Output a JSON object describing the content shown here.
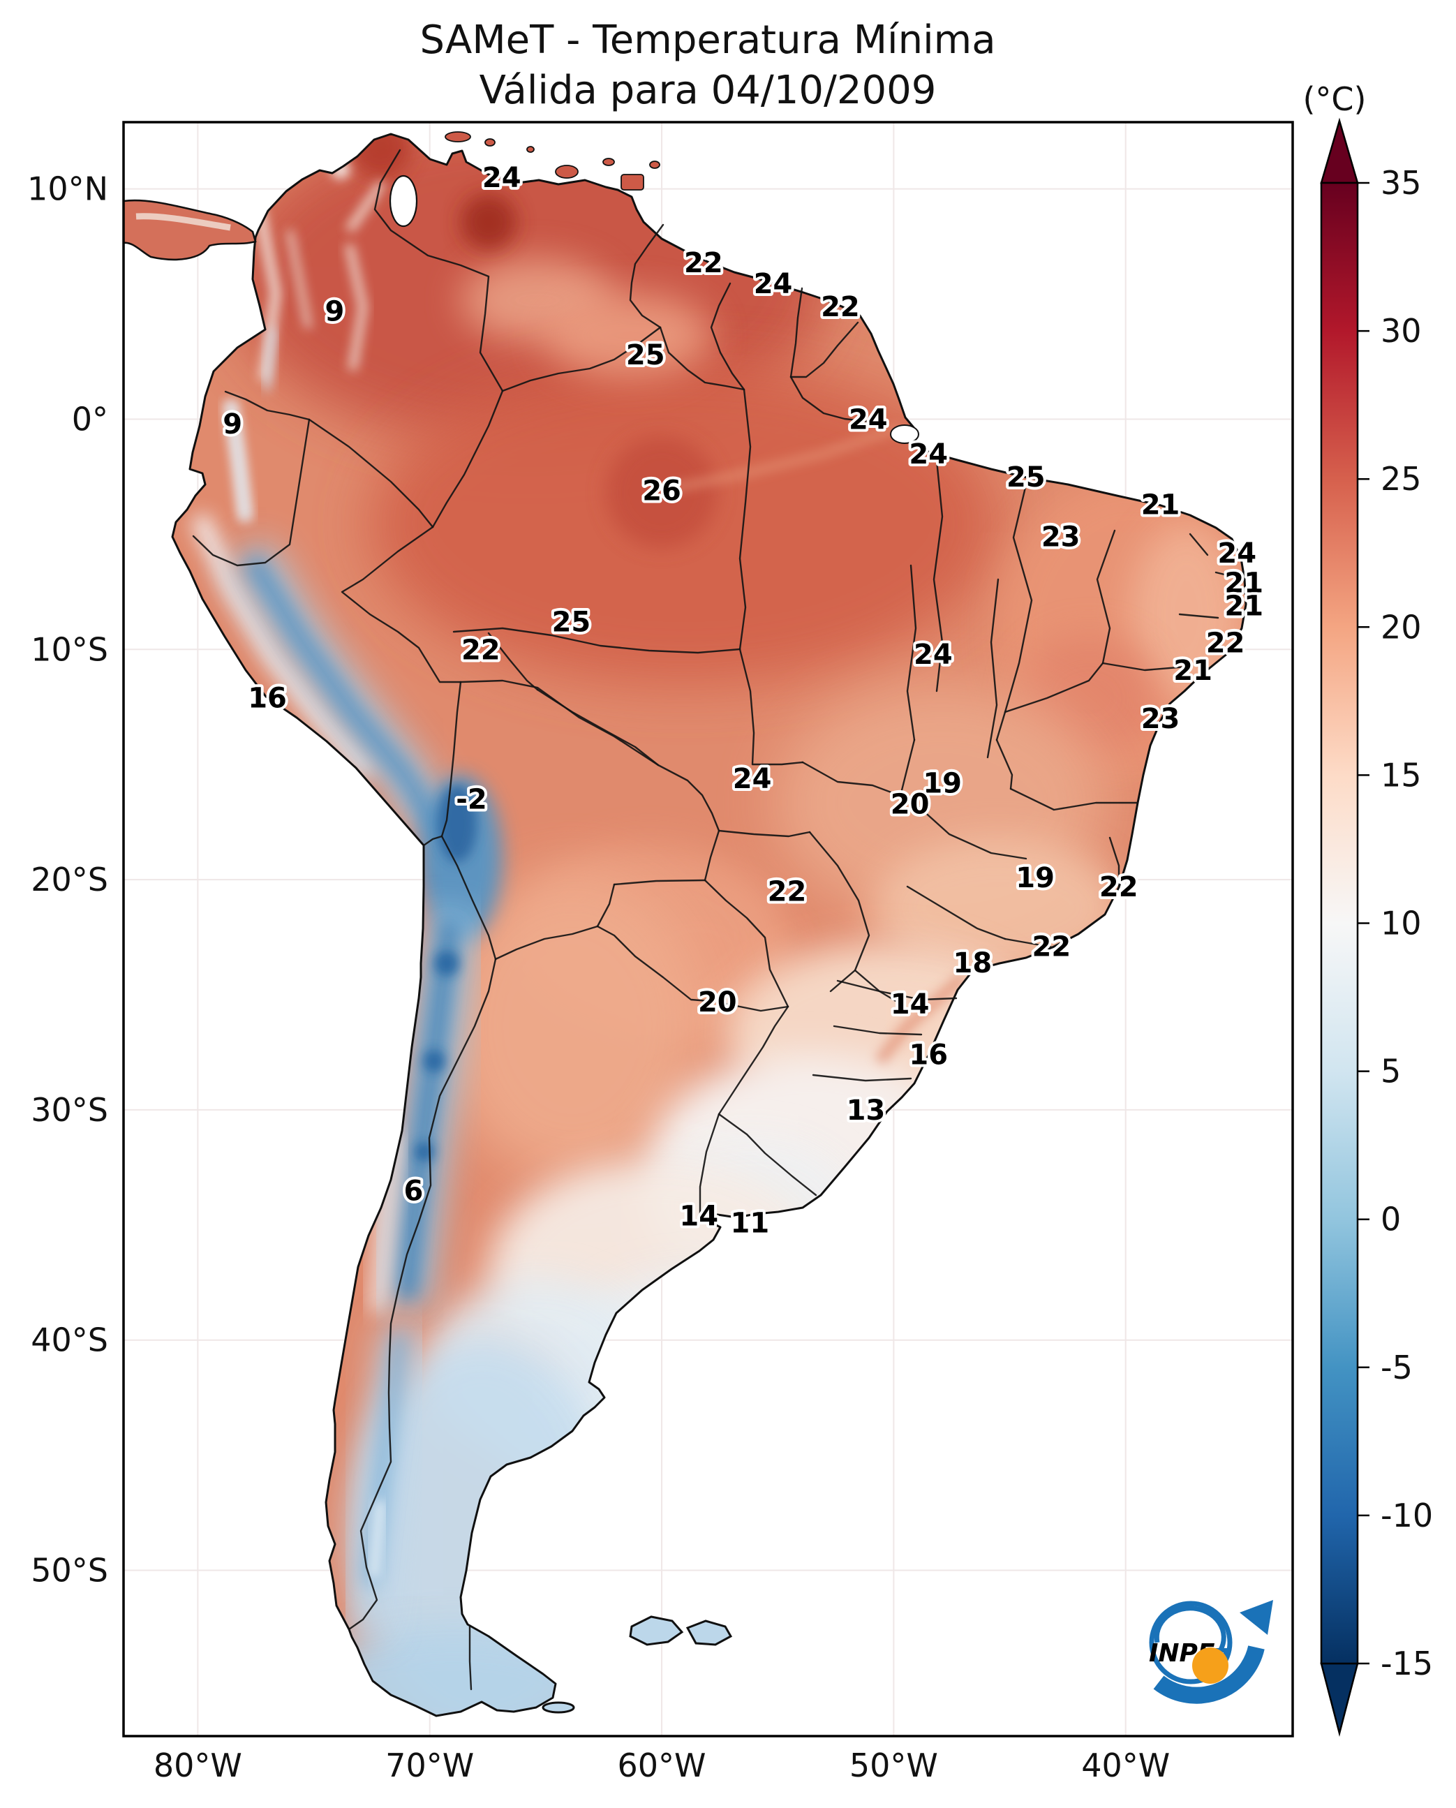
{
  "title": {
    "line1": "SAMeT - Temperatura Mínima",
    "line2": "Válida para 04/10/2009"
  },
  "colorbar": {
    "unit": "(°C)",
    "colormap": "RdBu_r",
    "extend": "both",
    "vmin": -15,
    "vmax": 35,
    "ticks": [
      35,
      30,
      25,
      20,
      15,
      10,
      5,
      0,
      -5,
      -10,
      -15
    ]
  },
  "logo": {
    "text": "INPE"
  },
  "chart_data": {
    "type": "heatmap",
    "title": "SAMeT - Temperatura Mínima",
    "subtitle": "Válida para 04/10/2009",
    "ylabel": "",
    "xlabel": "",
    "units": "°C",
    "region": "South America",
    "axes": {
      "xlim": [
        -83.2,
        -32.8
      ],
      "ylim": [
        -57.2,
        12.9
      ],
      "lon_ticks": [
        {
          "label": "80°W",
          "value": -80
        },
        {
          "label": "70°W",
          "value": -70
        },
        {
          "label": "60°W",
          "value": -60
        },
        {
          "label": "50°W",
          "value": -50
        },
        {
          "label": "40°W",
          "value": -40
        }
      ],
      "lat_ticks": [
        {
          "label": "10°N",
          "value": 10
        },
        {
          "label": "0°",
          "value": 0
        },
        {
          "label": "10°S",
          "value": -10
        },
        {
          "label": "20°S",
          "value": -20
        },
        {
          "label": "30°S",
          "value": -30
        },
        {
          "label": "40°S",
          "value": -40
        },
        {
          "label": "50°S",
          "value": -50
        }
      ],
      "grid": true
    },
    "stations": [
      {
        "value": 24,
        "lat": 10.5,
        "lon": -66.9
      },
      {
        "value": 22,
        "lat": 6.8,
        "lon": -58.2
      },
      {
        "value": 24,
        "lat": 5.9,
        "lon": -55.2
      },
      {
        "value": 22,
        "lat": 4.9,
        "lon": -52.3
      },
      {
        "value": 25,
        "lat": 2.8,
        "lon": -60.7
      },
      {
        "value": 9,
        "lat": 4.7,
        "lon": -74.1
      },
      {
        "value": 9,
        "lat": -0.2,
        "lon": -78.5
      },
      {
        "value": 24,
        "lat": 0.0,
        "lon": -51.1
      },
      {
        "value": 24,
        "lat": -1.5,
        "lon": -48.5
      },
      {
        "value": 25,
        "lat": -2.5,
        "lon": -44.3
      },
      {
        "value": 26,
        "lat": -3.1,
        "lon": -60.0
      },
      {
        "value": 21,
        "lat": -3.7,
        "lon": -38.5
      },
      {
        "value": 23,
        "lat": -5.1,
        "lon": -42.8
      },
      {
        "value": 24,
        "lat": -5.8,
        "lon": -35.2
      },
      {
        "value": 21,
        "lat": -7.1,
        "lon": -34.9
      },
      {
        "value": 21,
        "lat": -8.1,
        "lon": -34.9
      },
      {
        "value": 25,
        "lat": -8.8,
        "lon": -63.9
      },
      {
        "value": 22,
        "lat": -10.0,
        "lon": -67.8
      },
      {
        "value": 22,
        "lat": -9.7,
        "lon": -35.7
      },
      {
        "value": 24,
        "lat": -10.2,
        "lon": -48.3
      },
      {
        "value": 21,
        "lat": -10.9,
        "lon": -37.1
      },
      {
        "value": 16,
        "lat": -12.1,
        "lon": -77.0
      },
      {
        "value": 23,
        "lat": -13.0,
        "lon": -38.5
      },
      {
        "value": -2,
        "lat": -16.5,
        "lon": -68.2
      },
      {
        "value": 24,
        "lat": -15.6,
        "lon": -56.1
      },
      {
        "value": 19,
        "lat": -15.8,
        "lon": -47.9
      },
      {
        "value": 20,
        "lat": -16.7,
        "lon": -49.3
      },
      {
        "value": 19,
        "lat": -19.9,
        "lon": -43.9
      },
      {
        "value": 22,
        "lat": -20.3,
        "lon": -40.3
      },
      {
        "value": 22,
        "lat": -20.5,
        "lon": -54.6
      },
      {
        "value": 22,
        "lat": -22.9,
        "lon": -43.2
      },
      {
        "value": 18,
        "lat": -23.6,
        "lon": -46.6
      },
      {
        "value": 20,
        "lat": -25.3,
        "lon": -57.6
      },
      {
        "value": 14,
        "lat": -25.4,
        "lon": -49.3
      },
      {
        "value": 16,
        "lat": -27.6,
        "lon": -48.5
      },
      {
        "value": 13,
        "lat": -30.0,
        "lon": -51.2
      },
      {
        "value": 6,
        "lat": -33.5,
        "lon": -70.7
      },
      {
        "value": 14,
        "lat": -34.6,
        "lon": -58.4
      },
      {
        "value": 11,
        "lat": -34.9,
        "lon": -56.2
      }
    ]
  }
}
